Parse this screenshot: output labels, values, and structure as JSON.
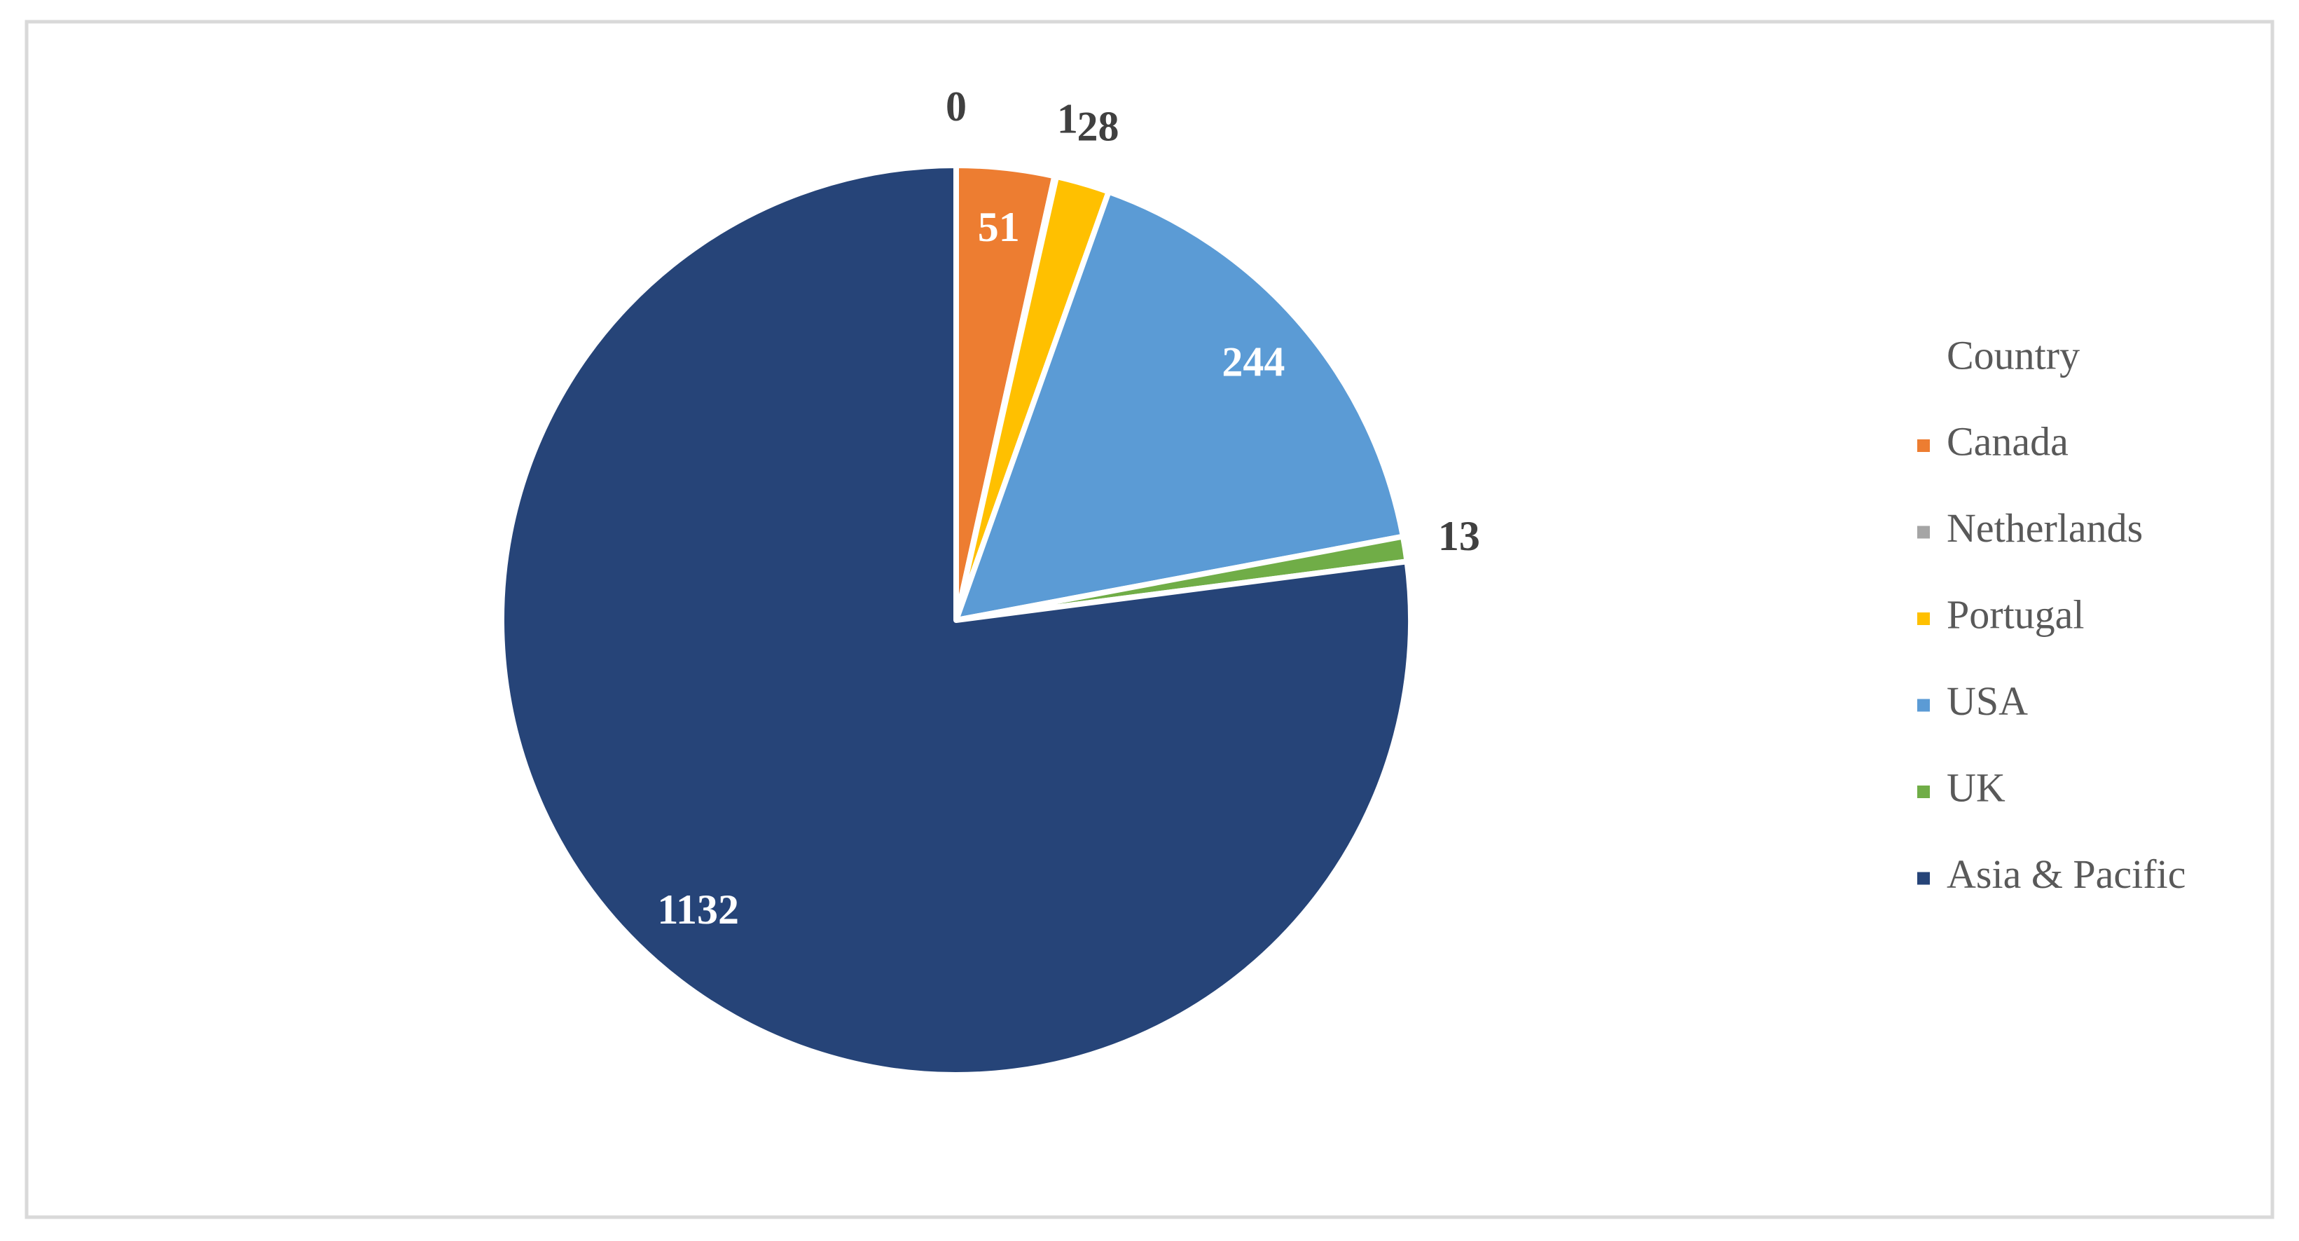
{
  "chart_data": {
    "type": "pie",
    "legend_title": "Country",
    "categories": [
      null,
      "Canada",
      "Netherlands",
      "Portugal",
      "USA",
      "UK",
      "Asia & Pacific"
    ],
    "values": [
      0,
      51,
      1,
      28,
      244,
      13,
      1132
    ],
    "colors": [
      null,
      "#ed7d31",
      "#a5a5a5",
      "#ffc000",
      "#5b9bd5",
      "#70ad47",
      "#264478"
    ],
    "legend": "right"
  }
}
